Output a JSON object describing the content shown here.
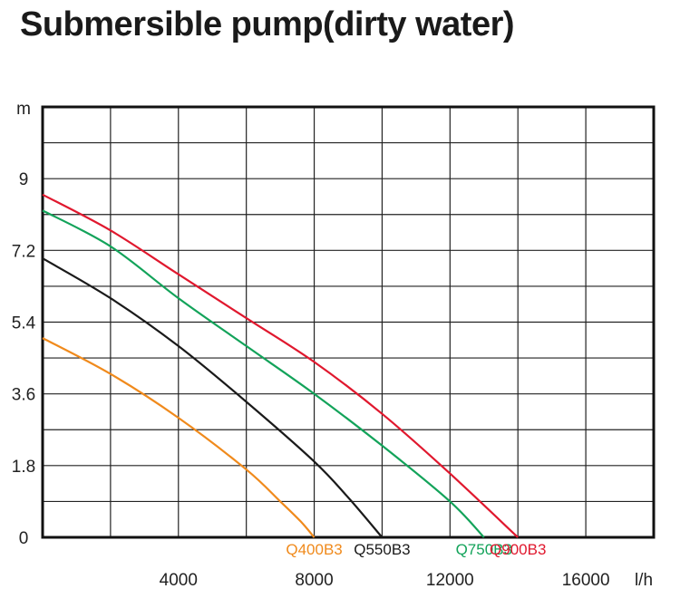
{
  "chart_data": {
    "type": "line",
    "title": "Submersible pump(dirty water)",
    "xlabel": "l/h",
    "ylabel": "m",
    "xlim": [
      0,
      18000
    ],
    "ylim": [
      0,
      10.8
    ],
    "x_ticks": [
      4000,
      8000,
      12000,
      16000
    ],
    "x_tick_labels": [
      "4000",
      "8000",
      "12000",
      "16000"
    ],
    "y_ticks": [
      0,
      1.8,
      3.6,
      5.4,
      7.2,
      9
    ],
    "y_tick_labels": [
      "0",
      "1.8",
      "3.6",
      "5.4",
      "7.2",
      "9"
    ],
    "grid": true,
    "series": [
      {
        "name": "Q400B3",
        "color": "#f08a1c",
        "x": [
          0,
          2000,
          4000,
          6000,
          7000,
          7600,
          8000
        ],
        "y": [
          5.0,
          4.1,
          3.0,
          1.7,
          0.9,
          0.4,
          0
        ]
      },
      {
        "name": "Q550B3",
        "color": "#1a1a1a",
        "x": [
          0,
          2000,
          4000,
          6000,
          8000,
          9000,
          10000
        ],
        "y": [
          7.0,
          6.0,
          4.8,
          3.4,
          1.9,
          1.0,
          0
        ]
      },
      {
        "name": "Q750B3",
        "color": "#13a35a",
        "x": [
          0,
          2000,
          4000,
          6000,
          8000,
          10000,
          12000,
          13000
        ],
        "y": [
          8.2,
          7.3,
          6.0,
          4.8,
          3.6,
          2.3,
          0.9,
          0
        ]
      },
      {
        "name": "Q900B3",
        "color": "#e0182e",
        "x": [
          0,
          2000,
          4000,
          6000,
          8000,
          10000,
          12000,
          14000
        ],
        "y": [
          8.6,
          7.7,
          6.6,
          5.5,
          4.4,
          3.1,
          1.6,
          0
        ]
      }
    ],
    "series_label_positions": "below x-axis, at each curve's shut-off flow"
  }
}
